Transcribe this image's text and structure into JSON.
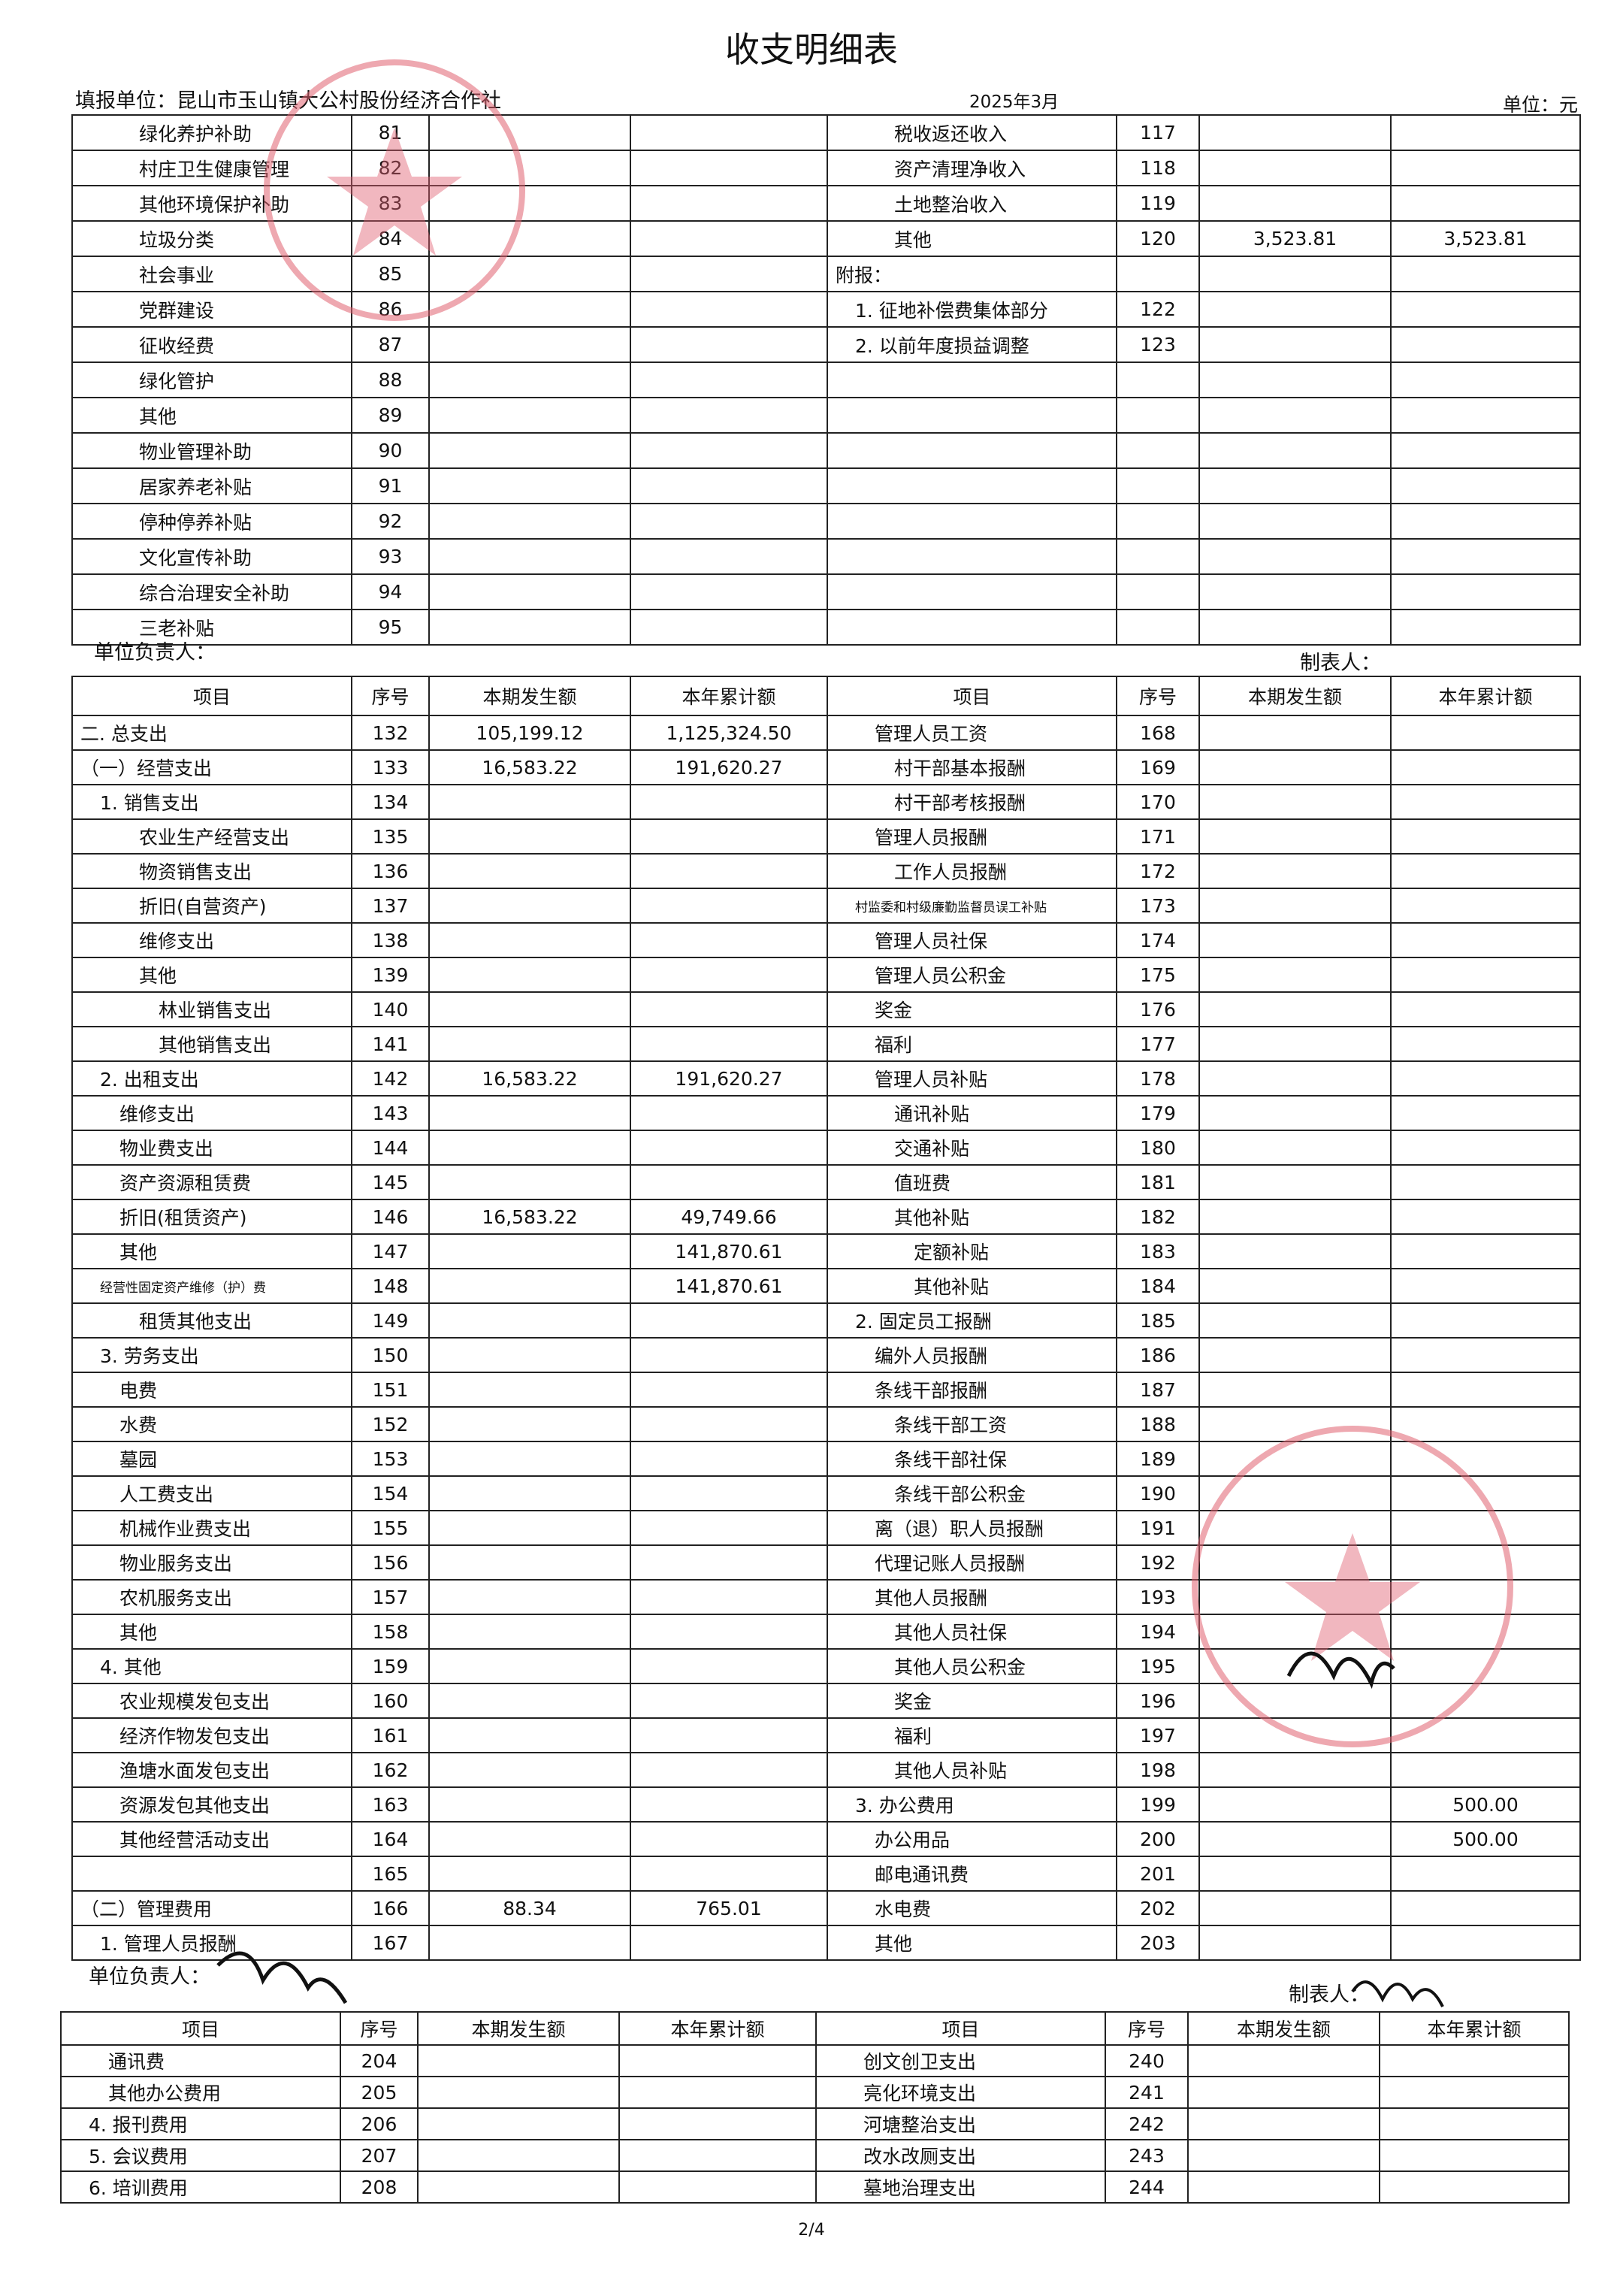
{
  "header": {
    "title": "收支明细表",
    "unit": "填报单位：昆山市玉山镇大公村股份经济合作社",
    "period": "2025年3月",
    "currency": "单位：元"
  },
  "table1": {
    "rows": [
      [
        "绿化养护补助",
        "81",
        null,
        null,
        "税收返还收入",
        "117",
        null,
        null
      ],
      [
        "村庄卫生健康管理",
        "82",
        null,
        null,
        "资产清理净收入",
        "118",
        null,
        null
      ],
      [
        "其他环境保护补助",
        "83",
        null,
        null,
        "土地整治收入",
        "119",
        null,
        null
      ],
      [
        "垃圾分类",
        "84",
        null,
        null,
        "其他",
        "120",
        "3,523.81",
        "3,523.81"
      ],
      [
        "社会事业",
        "85",
        null,
        null,
        "附报：",
        null,
        null,
        null
      ],
      [
        "党群建设",
        "86",
        null,
        null,
        "1. 征地补偿费集体部分",
        "122",
        null,
        null
      ],
      [
        "征收经费",
        "87",
        null,
        null,
        "2. 以前年度损益调整",
        "123",
        null,
        null
      ],
      [
        "绿化管护",
        "88",
        null,
        null,
        null,
        null,
        null,
        null
      ],
      [
        "其他",
        "89",
        null,
        null,
        null,
        null,
        null,
        null
      ],
      [
        "物业管理补助",
        "90",
        null,
        null,
        null,
        null,
        null,
        null
      ],
      [
        "居家养老补贴",
        "91",
        null,
        null,
        null,
        null,
        null,
        null
      ],
      [
        "停种停养补贴",
        "92",
        null,
        null,
        null,
        null,
        null,
        null
      ],
      [
        "文化宣传补助",
        "93",
        null,
        null,
        null,
        null,
        null,
        null
      ],
      [
        "综合治理安全补助",
        "94",
        null,
        null,
        null,
        null,
        null,
        null
      ],
      [
        "三老补贴",
        "95",
        null,
        null,
        null,
        null,
        null,
        null
      ]
    ]
  },
  "footer1": {
    "leader": "单位负责人：",
    "preparer": "制表人："
  },
  "table2": {
    "columns": [
      "项目",
      "序号",
      "本期发生额",
      "本年累计额",
      "项目",
      "序号",
      "本期发生额",
      "本年累计额"
    ],
    "rows": [
      [
        "二. 总支出",
        "132",
        "105,199.12",
        "1,125,324.50",
        "管理人员工资",
        "168",
        null,
        null
      ],
      [
        "（一）经营支出",
        "133",
        "16,583.22",
        "191,620.27",
        "村干部基本报酬",
        "169",
        null,
        null
      ],
      [
        "1. 销售支出",
        "134",
        null,
        null,
        "村干部考核报酬",
        "170",
        null,
        null
      ],
      [
        "农业生产经营支出",
        "135",
        null,
        null,
        "管理人员报酬",
        "171",
        null,
        null
      ],
      [
        "物资销售支出",
        "136",
        null,
        null,
        "工作人员报酬",
        "172",
        null,
        null
      ],
      [
        "折旧(自营资产)",
        "137",
        null,
        null,
        "村监委和村级廉勤监督员误工补贴",
        "173",
        null,
        null
      ],
      [
        "维修支出",
        "138",
        null,
        null,
        "管理人员社保",
        "174",
        null,
        null
      ],
      [
        "其他",
        "139",
        null,
        null,
        "管理人员公积金",
        "175",
        null,
        null
      ],
      [
        "林业销售支出",
        "140",
        null,
        null,
        "奖金",
        "176",
        null,
        null
      ],
      [
        "其他销售支出",
        "141",
        null,
        null,
        "福利",
        "177",
        null,
        null
      ],
      [
        "2. 出租支出",
        "142",
        "16,583.22",
        "191,620.27",
        "管理人员补贴",
        "178",
        null,
        null
      ],
      [
        "维修支出",
        "143",
        null,
        null,
        "通讯补贴",
        "179",
        null,
        null
      ],
      [
        "物业费支出",
        "144",
        null,
        null,
        "交通补贴",
        "180",
        null,
        null
      ],
      [
        "资产资源租赁费",
        "145",
        null,
        null,
        "值班费",
        "181",
        null,
        null
      ],
      [
        "折旧(租赁资产)",
        "146",
        "16,583.22",
        "49,749.66",
        "其他补贴",
        "182",
        null,
        null
      ],
      [
        "其他",
        "147",
        null,
        "141,870.61",
        "定额补贴",
        "183",
        null,
        null
      ],
      [
        "经营性固定资产维修（护）费",
        "148",
        null,
        "141,870.61",
        "其他补贴",
        "184",
        null,
        null
      ],
      [
        "租赁其他支出",
        "149",
        null,
        null,
        "2. 固定员工报酬",
        "185",
        null,
        null
      ],
      [
        "3. 劳务支出",
        "150",
        null,
        null,
        "编外人员报酬",
        "186",
        null,
        null
      ],
      [
        "电费",
        "151",
        null,
        null,
        "条线干部报酬",
        "187",
        null,
        null
      ],
      [
        "水费",
        "152",
        null,
        null,
        "条线干部工资",
        "188",
        null,
        null
      ],
      [
        "墓园",
        "153",
        null,
        null,
        "条线干部社保",
        "189",
        null,
        null
      ],
      [
        "人工费支出",
        "154",
        null,
        null,
        "条线干部公积金",
        "190",
        null,
        null
      ],
      [
        "机械作业费支出",
        "155",
        null,
        null,
        "离（退）职人员报酬",
        "191",
        null,
        null
      ],
      [
        "物业服务支出",
        "156",
        null,
        null,
        "代理记账人员报酬",
        "192",
        null,
        null
      ],
      [
        "农机服务支出",
        "157",
        null,
        null,
        "其他人员报酬",
        "193",
        null,
        null
      ],
      [
        "其他",
        "158",
        null,
        null,
        "其他人员社保",
        "194",
        null,
        null
      ],
      [
        "4. 其他",
        "159",
        null,
        null,
        "其他人员公积金",
        "195",
        null,
        null
      ],
      [
        "农业规模发包支出",
        "160",
        null,
        null,
        "奖金",
        "196",
        null,
        null
      ],
      [
        "经济作物发包支出",
        "161",
        null,
        null,
        "福利",
        "197",
        null,
        null
      ],
      [
        "渔塘水面发包支出",
        "162",
        null,
        null,
        "其他人员补贴",
        "198",
        null,
        null
      ],
      [
        "资源发包其他支出",
        "163",
        null,
        null,
        "3. 办公费用",
        "199",
        null,
        "500.00"
      ],
      [
        "其他经营活动支出",
        "164",
        null,
        null,
        "办公用品",
        "200",
        null,
        "500.00"
      ],
      [
        null,
        "165",
        null,
        null,
        "邮电通讯费",
        "201",
        null,
        null
      ],
      [
        "（二）管理费用",
        "166",
        "88.34",
        "765.01",
        "水电费",
        "202",
        null,
        null
      ],
      [
        "1. 管理人员报酬",
        "167",
        null,
        null,
        "其他",
        "203",
        null,
        null
      ]
    ]
  },
  "footer2": {
    "leader": "单位负责人：",
    "preparer": "制表人："
  },
  "table3": {
    "columns": [
      "项目",
      "序号",
      "本期发生额",
      "本年累计额",
      "项目",
      "序号",
      "本期发生额",
      "本年累计额"
    ],
    "rows": [
      [
        "通讯费",
        "204",
        null,
        null,
        "创文创卫支出",
        "240",
        null,
        null
      ],
      [
        "其他办公费用",
        "205",
        null,
        null,
        "亮化环境支出",
        "241",
        null,
        null
      ],
      [
        "4. 报刊费用",
        "206",
        null,
        null,
        "河塘整治支出",
        "242",
        null,
        null
      ],
      [
        "5. 会议费用",
        "207",
        null,
        null,
        "改水改厕支出",
        "243",
        null,
        null
      ],
      [
        "6. 培训费用",
        "208",
        null,
        null,
        "墓地治理支出",
        "244",
        null,
        null
      ]
    ]
  },
  "page": "2/4"
}
